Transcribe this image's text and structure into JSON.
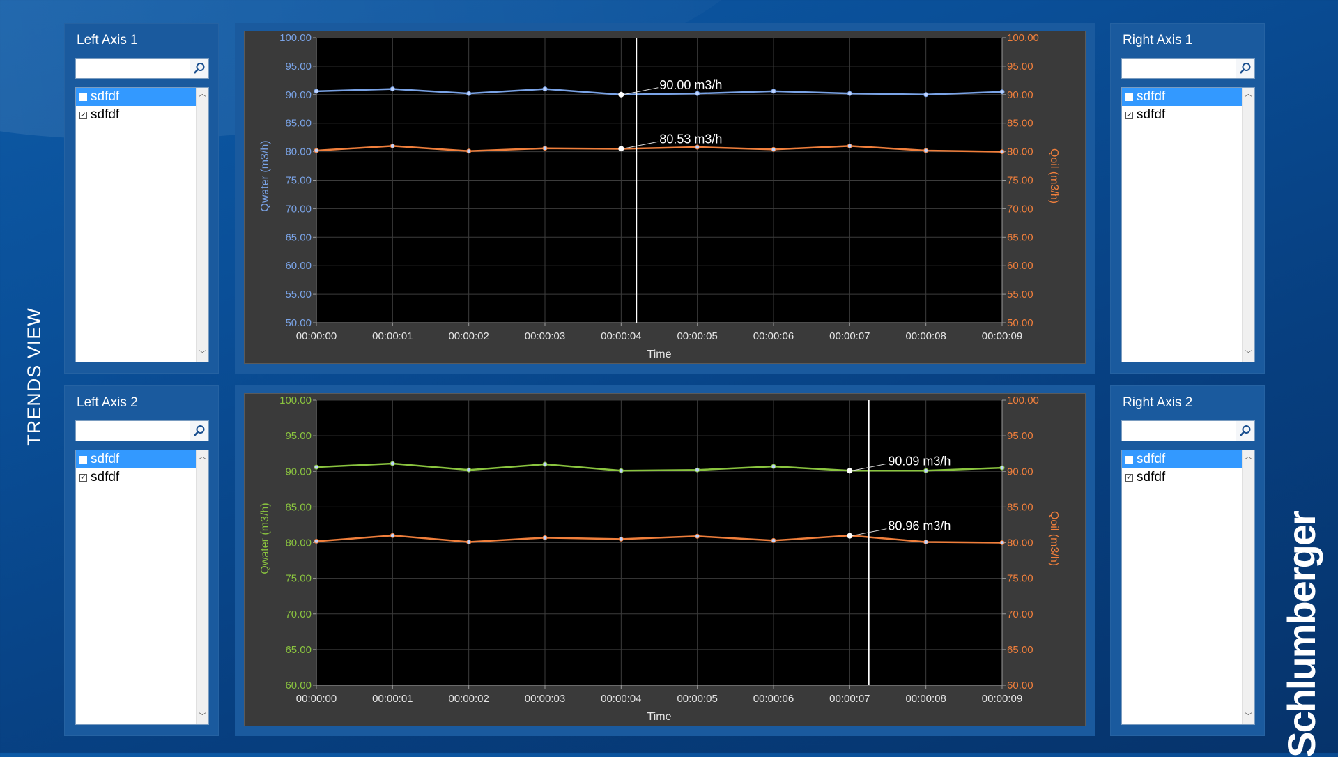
{
  "app": {
    "view_title": "TRENDS VIEW",
    "logo": "Schlumberger"
  },
  "colors": {
    "series_blue": "#7aa3e6",
    "series_green": "#8ac43f",
    "series_orange": "#f07f3c",
    "left_axis_1": "#7aa3e6",
    "left_axis_2": "#8ac43f",
    "right_axis": "#f07f3c"
  },
  "panels": {
    "left1": {
      "label": "Left Axis 1",
      "search_value": "",
      "items": [
        {
          "label": "sdfdf",
          "checked": false,
          "selected": true
        },
        {
          "label": "sdfdf",
          "checked": true,
          "selected": false
        }
      ]
    },
    "right1": {
      "label": "Right Axis 1",
      "search_value": "",
      "items": [
        {
          "label": "sdfdf",
          "checked": false,
          "selected": true
        },
        {
          "label": "sdfdf",
          "checked": true,
          "selected": false
        }
      ]
    },
    "left2": {
      "label": "Left Axis 2",
      "search_value": "",
      "items": [
        {
          "label": "sdfdf",
          "checked": false,
          "selected": true
        },
        {
          "label": "sdfdf",
          "checked": true,
          "selected": false
        }
      ]
    },
    "right2": {
      "label": "Right Axis 2",
      "search_value": "",
      "items": [
        {
          "label": "sdfdf",
          "checked": false,
          "selected": true
        },
        {
          "label": "sdfdf",
          "checked": true,
          "selected": false
        }
      ]
    }
  },
  "icons": {
    "search": "search-icon",
    "scroll_up": "chevron-up-icon",
    "scroll_down": "chevron-down-icon"
  },
  "chart_data": [
    {
      "type": "line",
      "xlabel": "Time",
      "ylabel_left": "Qwater (m3/h)",
      "ylabel_right": "Qoil (m3/h)",
      "x": [
        "00:00:00",
        "00:00:01",
        "00:00:02",
        "00:00:03",
        "00:00:04",
        "00:00:05",
        "00:00:06",
        "00:00:07",
        "00:00:08",
        "00:00:09"
      ],
      "ylim_left": [
        50,
        100
      ],
      "ylim_right": [
        50,
        100
      ],
      "yticks": [
        "50.00",
        "55.00",
        "60.00",
        "65.00",
        "70.00",
        "75.00",
        "80.00",
        "85.00",
        "90.00",
        "95.00",
        "100.00"
      ],
      "grid": true,
      "series": [
        {
          "axis": "left",
          "color": "#7aa3e6",
          "values": [
            90.6,
            91.0,
            90.2,
            91.0,
            90.0,
            90.2,
            90.6,
            90.2,
            90.0,
            90.5
          ]
        },
        {
          "axis": "right",
          "color": "#f07f3c",
          "values": [
            80.2,
            81.0,
            80.1,
            80.6,
            80.5,
            80.8,
            80.4,
            81.0,
            80.2,
            80.0
          ]
        }
      ],
      "cursor_time": "00:00:04.2",
      "annotations": [
        {
          "text": "90.00 m3/h",
          "x_index": 4,
          "value": 90.0,
          "axis": "left"
        },
        {
          "text": "80.53 m3/h",
          "x_index": 4,
          "value": 80.53,
          "axis": "right"
        }
      ]
    },
    {
      "type": "line",
      "xlabel": "Time",
      "ylabel_left": "Qwater (m3/h)",
      "ylabel_right": "Qoil (m3/h)",
      "x": [
        "00:00:00",
        "00:00:01",
        "00:00:02",
        "00:00:03",
        "00:00:04",
        "00:00:05",
        "00:00:06",
        "00:00:07",
        "00:00:08",
        "00:00:09"
      ],
      "ylim_left": [
        60,
        100
      ],
      "ylim_right": [
        60,
        100
      ],
      "yticks": [
        "60.00",
        "65.00",
        "70.00",
        "75.00",
        "80.00",
        "85.00",
        "90.00",
        "95.00",
        "100.00"
      ],
      "grid": true,
      "series": [
        {
          "axis": "left",
          "color": "#8ac43f",
          "values": [
            90.6,
            91.1,
            90.2,
            91.0,
            90.1,
            90.2,
            90.7,
            90.1,
            90.1,
            90.5
          ]
        },
        {
          "axis": "right",
          "color": "#f07f3c",
          "values": [
            80.2,
            81.0,
            80.1,
            80.7,
            80.5,
            80.9,
            80.3,
            81.0,
            80.1,
            80.0
          ]
        }
      ],
      "cursor_time": "00:00:07.25",
      "annotations": [
        {
          "text": "90.09 m3/h",
          "x_index": 7,
          "value": 90.09,
          "axis": "left"
        },
        {
          "text": "80.96 m3/h",
          "x_index": 7,
          "value": 80.96,
          "axis": "right"
        }
      ]
    }
  ]
}
